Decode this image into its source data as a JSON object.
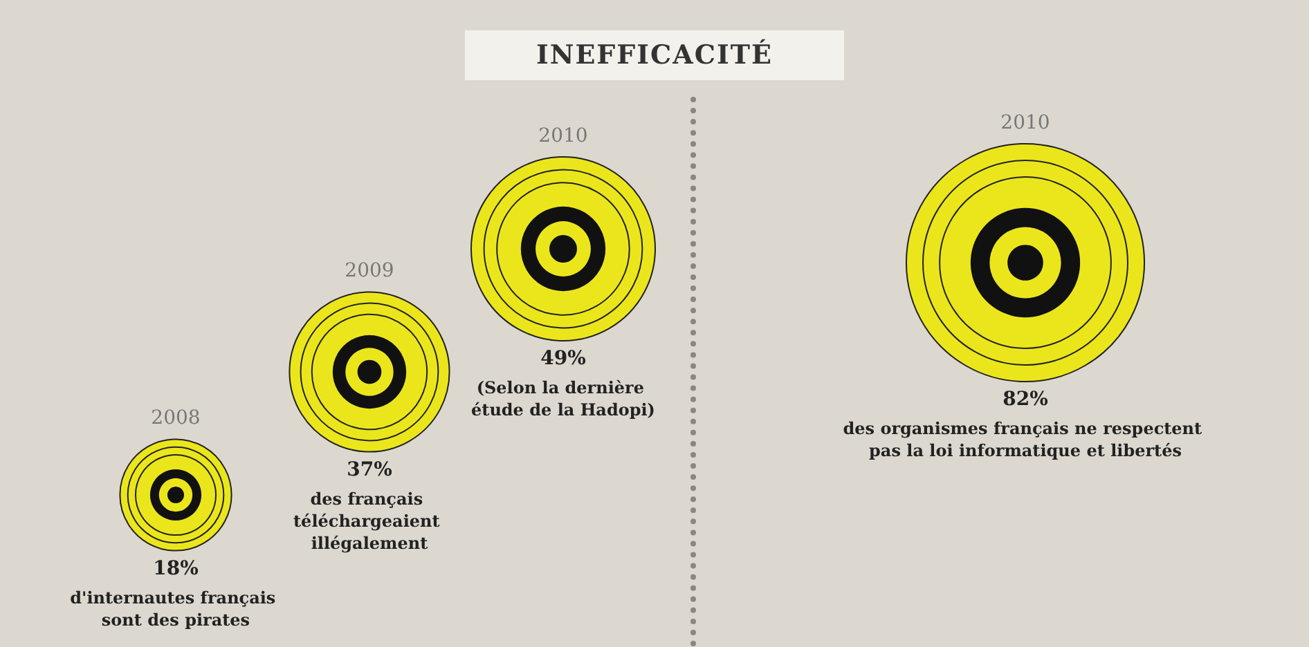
{
  "chart_data": [
    {
      "type": "other",
      "title": "INEFFICACITÉ",
      "categories": [
        "2008",
        "2009",
        "2010"
      ],
      "values": [
        18,
        37,
        49
      ],
      "value_labels": [
        "18%",
        "37%",
        "49%"
      ],
      "color": "#ebe61c",
      "annotations": [
        "d'internautes français sont des pirates",
        "des français téléchargeaient illégalement",
        "(Selon la dernière étude de la Hadopi)"
      ]
    },
    {
      "type": "other",
      "categories": [
        "2010"
      ],
      "values": [
        82
      ],
      "value_labels": [
        "82%"
      ],
      "color": "#ebe61c",
      "annotations": [
        "des organismes français ne respectent pas la loi informatique et libertés"
      ]
    }
  ]
}
